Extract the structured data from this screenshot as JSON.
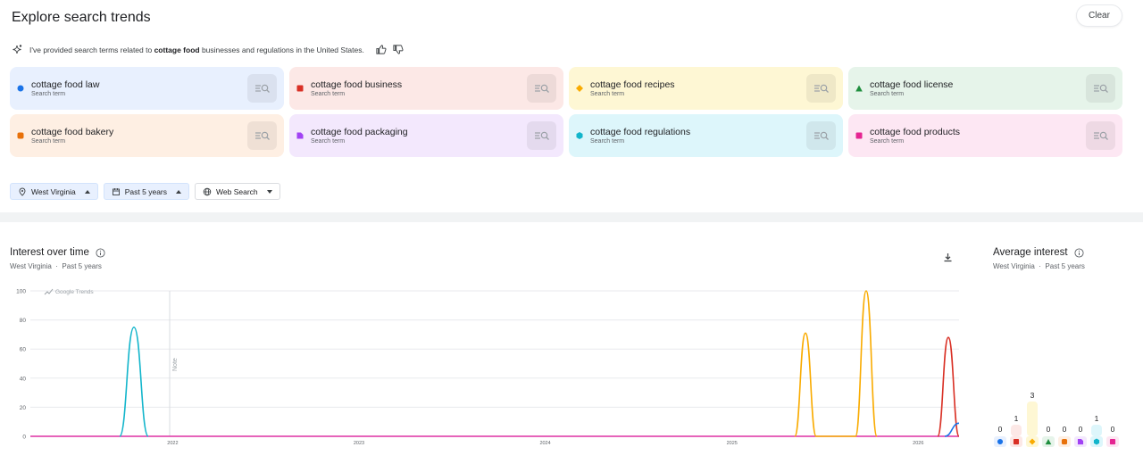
{
  "header": {
    "title": "Explore search trends",
    "clear_label": "Clear"
  },
  "message": {
    "prefix": "I've provided search terms related to ",
    "topic": "cottage food",
    "suffix": " businesses and regulations in the United States."
  },
  "icons": {
    "sparkle": "sparkle-icon",
    "thumb_up": "thumbs-up-icon",
    "thumb_down": "thumbs-down-icon",
    "search": "search-lines-icon",
    "location": "location-pin-icon",
    "calendar": "calendar-icon",
    "globe": "globe-icon",
    "info": "info-icon",
    "download": "download-icon",
    "trend": "trend-line-icon"
  },
  "terms": [
    {
      "name": "cottage food law",
      "sub": "Search term",
      "color": "#1a73e8",
      "bg": "#e8f0fe",
      "marker": "circle"
    },
    {
      "name": "cottage food business",
      "sub": "Search term",
      "color": "#d93025",
      "bg": "#fce8e6",
      "marker": "square"
    },
    {
      "name": "cottage food recipes",
      "sub": "Search term",
      "color": "#f9ab00",
      "bg": "#fef7d4",
      "marker": "diamond"
    },
    {
      "name": "cottage food license",
      "sub": "Search term",
      "color": "#1e8e3e",
      "bg": "#e6f4ea",
      "marker": "triangle"
    },
    {
      "name": "cottage food bakery",
      "sub": "Search term",
      "color": "#e8710a",
      "bg": "#feefe3",
      "marker": "rounded-square"
    },
    {
      "name": "cottage food packaging",
      "sub": "Search term",
      "color": "#a142f4",
      "bg": "#f3e8fd",
      "marker": "folded-square"
    },
    {
      "name": "cottage food regulations",
      "sub": "Search term",
      "color": "#12b5cb",
      "bg": "#ddf6fb",
      "marker": "hexagon"
    },
    {
      "name": "cottage food products",
      "sub": "Search term",
      "color": "#e52592",
      "bg": "#fde7f3",
      "marker": "square"
    }
  ],
  "filters": {
    "location": "West Virginia",
    "time": "Past 5 years",
    "property": "Web Search"
  },
  "interest_panel": {
    "title": "Interest over time",
    "location": "West Virginia",
    "separator": "·",
    "time": "Past 5 years",
    "watermark": "Google Trends",
    "note": "Note"
  },
  "average_panel": {
    "title": "Average interest",
    "location": "West Virginia",
    "separator": "·",
    "time": "Past 5 years"
  },
  "chart_data": [
    {
      "type": "line",
      "title": "Interest over time",
      "x_tick_labels": [
        "2022",
        "2023",
        "2024",
        "2025",
        "2026"
      ],
      "y_ticks": [
        0,
        20,
        40,
        60,
        80,
        100
      ],
      "ylim": [
        0,
        100
      ],
      "grid": true,
      "annotation": "Note",
      "series": [
        {
          "name": "cottage food regulations",
          "color": "#12b5cb",
          "points": [
            [
              "2021-09-19",
              0
            ],
            [
              "2021-10-17",
              75
            ],
            [
              "2021-11-14",
              0
            ]
          ]
        },
        {
          "name": "cottage food recipes",
          "color": "#f9ab00",
          "points": [
            [
              "2025-05-04",
              0
            ],
            [
              "2025-05-25",
              71
            ],
            [
              "2025-06-15",
              0
            ],
            [
              "2025-08-31",
              0
            ],
            [
              "2025-09-21",
              100
            ],
            [
              "2025-10-12",
              0
            ]
          ]
        },
        {
          "name": "cottage food business",
          "color": "#d93025",
          "points": [
            [
              "2026-02-08",
              0
            ],
            [
              "2026-03-01",
              68
            ],
            [
              "2026-03-22",
              0
            ]
          ]
        },
        {
          "name": "cottage food law",
          "color": "#1a73e8",
          "points": [
            [
              "2026-02-22",
              0
            ],
            [
              "2026-03-22",
              9
            ]
          ]
        },
        {
          "name": "cottage food products",
          "color": "#e52592",
          "points": []
        }
      ]
    },
    {
      "type": "bar",
      "title": "Average interest",
      "categories": [
        "cottage food law",
        "cottage food business",
        "cottage food recipes",
        "cottage food license",
        "cottage food bakery",
        "cottage food packaging",
        "cottage food regulations",
        "cottage food products"
      ],
      "values": [
        0,
        1,
        3,
        0,
        0,
        0,
        1,
        0
      ]
    }
  ]
}
